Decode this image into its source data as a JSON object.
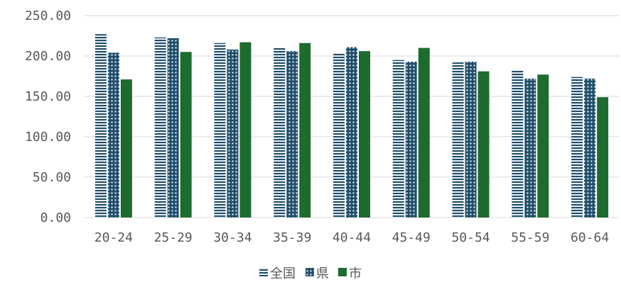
{
  "chart_data": {
    "type": "bar",
    "title": "",
    "xlabel": "",
    "ylabel": "",
    "ylim": [
      0,
      250
    ],
    "yticks": [
      "0.00",
      "50.00",
      "100.00",
      "150.00",
      "200.00",
      "250.00"
    ],
    "categories": [
      "20-24",
      "25-29",
      "30-34",
      "35-39",
      "40-44",
      "45-49",
      "50-54",
      "55-59",
      "60-64"
    ],
    "grid": true,
    "legend_position": "bottom",
    "series": [
      {
        "name": "全国",
        "pattern": "horizontal-stripes",
        "color": "#1f4e6b",
        "values": [
          227,
          223,
          216,
          211,
          203,
          195,
          192,
          182,
          174
        ]
      },
      {
        "name": "県",
        "pattern": "dotted",
        "color": "#1f4e6b",
        "values": [
          204,
          222,
          208,
          206,
          211,
          193,
          193,
          172,
          172
        ]
      },
      {
        "name": "市",
        "pattern": "solid",
        "color": "#1e6b2e",
        "values": [
          171,
          205,
          217,
          216,
          206,
          210,
          181,
          177,
          149
        ]
      }
    ]
  }
}
